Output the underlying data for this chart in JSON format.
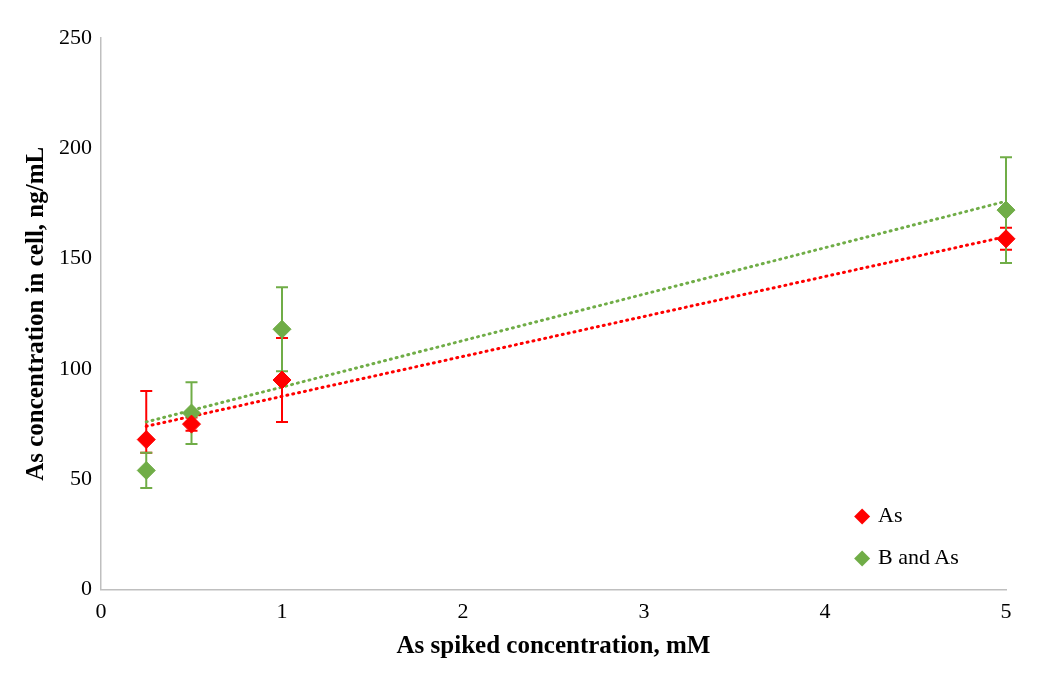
{
  "chart_data": {
    "type": "scatter",
    "xlabel": "As spiked concentration, mM",
    "ylabel": "As concentration in cell, ng/mL",
    "xlim": [
      0,
      5
    ],
    "xticks": [
      0,
      1,
      2,
      3,
      4,
      5
    ],
    "ylim": [
      0,
      250
    ],
    "yticks": [
      0,
      50,
      100,
      150,
      200,
      250
    ],
    "grid": false,
    "legend": "bottom right",
    "marker": "diamond",
    "series": [
      {
        "name": "As",
        "color": "#ff0000",
        "x": [
          0.25,
          0.5,
          1,
          5
        ],
        "values": [
          68,
          75,
          95,
          159
        ],
        "errors": [
          [
            62,
            90
          ],
          3,
          19,
          5
        ]
      },
      {
        "name": "B and As",
        "color": "#70ad47",
        "x": [
          0.25,
          0.5,
          1,
          5
        ],
        "values": [
          54,
          80,
          118,
          172
        ],
        "errors": [
          8,
          14,
          19,
          24
        ]
      },
      {
        "type": "line",
        "color": "#ff0000",
        "x": [
          0.25,
          5
        ],
        "values": [
          74,
          160
        ],
        "line_style": "dotted",
        "marker": "none"
      },
      {
        "type": "line",
        "color": "#70ad47",
        "x": [
          0.25,
          5
        ],
        "values": [
          76,
          176
        ],
        "line_style": "dotted",
        "marker": "none"
      }
    ]
  }
}
